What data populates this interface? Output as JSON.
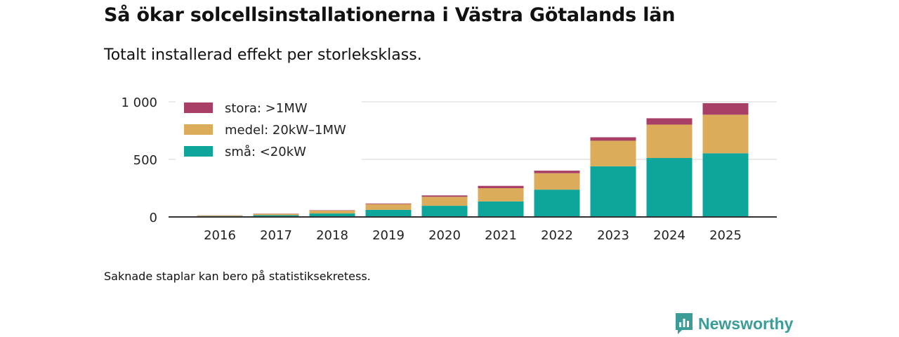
{
  "title": "Så ökar solcellsinstallationerna i Västra Götalands län",
  "subtitle": "Totalt installerad effekt per storleksklass.",
  "footnote": "Saknade staplar kan bero på statistiksekretess.",
  "brand": "Newsworthy",
  "chart_data": {
    "type": "bar",
    "stacked": true,
    "categories": [
      "2016",
      "2017",
      "2018",
      "2019",
      "2020",
      "2021",
      "2022",
      "2023",
      "2024",
      "2025"
    ],
    "series": [
      {
        "name": "små: <20kW",
        "color": "#0ea59a",
        "values": [
          8,
          15,
          30,
          62,
          97,
          135,
          237,
          440,
          512,
          553
        ]
      },
      {
        "name": "medel: 20kW–1MW",
        "color": "#dbac5a",
        "values": [
          5,
          12,
          25,
          50,
          78,
          115,
          143,
          222,
          290,
          335
        ]
      },
      {
        "name": "stora: >1MW",
        "color": "#a83f66",
        "values": [
          1,
          2,
          3,
          5,
          12,
          20,
          22,
          30,
          55,
          100
        ]
      }
    ],
    "yticks": [
      0,
      500,
      1000
    ],
    "ytick_labels": [
      "0",
      "500",
      "1 000"
    ],
    "ylim": [
      0,
      1000
    ],
    "grid": true,
    "legend_position": "top-left",
    "legend_order": [
      "stora: >1MW",
      "medel: 20kW–1MW",
      "små: <20kW"
    ]
  }
}
